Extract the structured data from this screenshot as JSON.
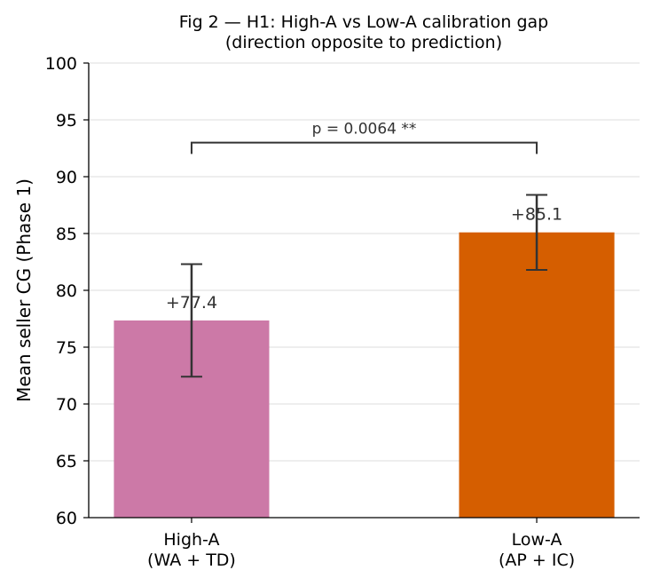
{
  "chart_data": {
    "type": "bar",
    "title": "Fig 2 — H1: High-A vs Low-A calibration gap",
    "subtitle": "(direction opposite to prediction)",
    "xlabel": "",
    "ylabel": "Mean seller CG (Phase 1)",
    "ylim": [
      60,
      100
    ],
    "yticks": [
      60,
      65,
      70,
      75,
      80,
      85,
      90,
      95,
      100
    ],
    "grid": "horizontal",
    "categories": [
      {
        "line1": "High-A",
        "line2": "(WA + TD)"
      },
      {
        "line1": "Low-A",
        "line2": "(AP + IC)"
      }
    ],
    "values": [
      77.35,
      85.1
    ],
    "error_low": [
      72.4,
      81.8
    ],
    "error_high": [
      82.3,
      88.4
    ],
    "data_labels": [
      "+77.4",
      "+85.1"
    ],
    "colors": [
      "#cc79a7",
      "#d55e00"
    ],
    "annotation": {
      "text": "p = 0.0064  **",
      "bracket_y": 93.0,
      "bracket_drop": 1.0
    }
  }
}
